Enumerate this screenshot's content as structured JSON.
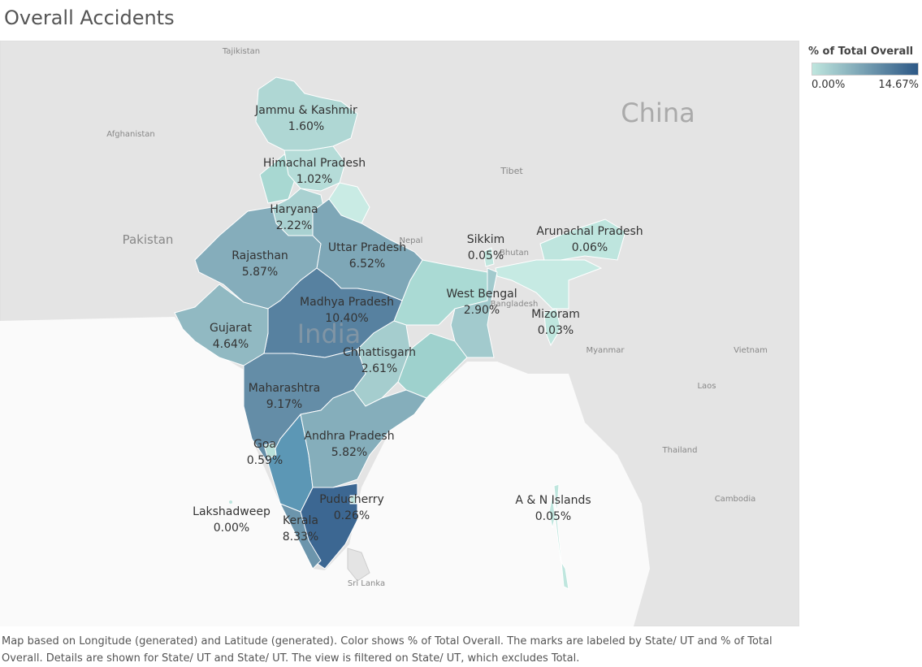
{
  "title": "Overall Accidents",
  "legend": {
    "title": "% of Total Overall",
    "min": {
      "value": 0,
      "label": "0.00%"
    },
    "max": {
      "value": 14.67,
      "label": "14.67%"
    },
    "colors": [
      "#bfe6de",
      "#2d5886"
    ]
  },
  "regions": [
    {
      "name": "Jammu & Kashmir",
      "value": 1.6,
      "label": "1.60%"
    },
    {
      "name": "Himachal Pradesh",
      "value": 1.02,
      "label": "1.02%"
    },
    {
      "name": "Haryana",
      "value": 2.22,
      "label": "2.22%"
    },
    {
      "name": "Uttar Pradesh",
      "value": 6.52,
      "label": "6.52%"
    },
    {
      "name": "Rajasthan",
      "value": 5.87,
      "label": "5.87%"
    },
    {
      "name": "Sikkim",
      "value": 0.05,
      "label": "0.05%"
    },
    {
      "name": "Arunachal Pradesh",
      "value": 0.06,
      "label": "0.06%"
    },
    {
      "name": "West Bengal",
      "value": 2.9,
      "label": "2.90%"
    },
    {
      "name": "Mizoram",
      "value": 0.03,
      "label": "0.03%"
    },
    {
      "name": "Madhya Pradesh",
      "value": 10.4,
      "label": "10.40%"
    },
    {
      "name": "Gujarat",
      "value": 4.64,
      "label": "4.64%"
    },
    {
      "name": "Chhattisgarh",
      "value": 2.61,
      "label": "2.61%"
    },
    {
      "name": "Maharashtra",
      "value": 9.17,
      "label": "9.17%"
    },
    {
      "name": "Andhra Pradesh",
      "value": 5.82,
      "label": "5.82%"
    },
    {
      "name": "Goa",
      "value": 0.59,
      "label": "0.59%"
    },
    {
      "name": "Puducherry",
      "value": 0.26,
      "label": "0.26%"
    },
    {
      "name": "Lakshadweep",
      "value": 0,
      "label": "0.00%"
    },
    {
      "name": "A & N Islands",
      "value": 0.05,
      "label": "0.05%"
    },
    {
      "name": "Kerala",
      "value": 8.33,
      "label": "8.33%"
    }
  ],
  "places": [
    "Tajikistan",
    "Afghanistan",
    "Pakistan",
    "China",
    "Tibet",
    "Nepal",
    "Bhutan",
    "Bangladesh",
    "Myanmar",
    "Vietnam",
    "Laos",
    "Thailand",
    "Cambodia",
    "Sri Lanka",
    "India"
  ],
  "caption": "Map based on Longitude (generated) and Latitude (generated).  Color shows % of Total Overall.  The marks are labeled by State/ UT and % of Total Overall.  Details are shown for State/ UT and State/ UT. The view is filtered on State/ UT, which excludes Total."
}
